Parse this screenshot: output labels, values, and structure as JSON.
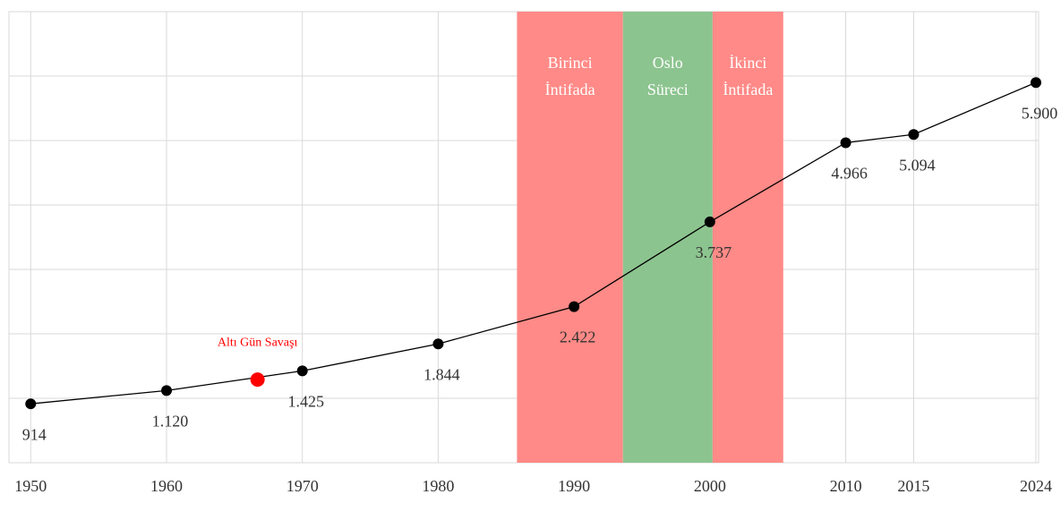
{
  "chart_data": {
    "type": "line",
    "x": [
      1950,
      1960,
      1970,
      1980,
      1990,
      2000,
      2010,
      2015,
      2024
    ],
    "values": [
      914,
      1120,
      1425,
      1844,
      2422,
      3737,
      4966,
      5094,
      5900
    ],
    "value_labels": [
      "914",
      "1.120",
      "1.425",
      "1.844",
      "2.422",
      "3.737",
      "4.966",
      "5.094",
      "5.900"
    ],
    "color": "#000000",
    "xlim": [
      1948.4,
      2024.2
    ],
    "ylim": [
      0,
      7000
    ],
    "xticks": [
      1950,
      1960,
      1970,
      1980,
      1990,
      2000,
      2010,
      2015,
      2024
    ],
    "yticks": [
      0,
      1000,
      2000,
      3000,
      4000,
      5000,
      6000,
      7000
    ],
    "grid": true,
    "bands": [
      {
        "lines": [
          "Birinci",
          "İntifada"
        ],
        "start": 1985.8,
        "end": 1993.6,
        "color": "#ff8a87"
      },
      {
        "lines": [
          "Oslo",
          "Süreci"
        ],
        "start": 1993.6,
        "end": 2000.2,
        "color": "#8cc48f"
      },
      {
        "lines": [
          "İkinci",
          "İntifada"
        ],
        "start": 2000.2,
        "end": 2005.4,
        "color": "#ff8a87"
      }
    ],
    "annotation": {
      "text": "Altı Gün Savaşı",
      "x": 1966.7,
      "value": 1290,
      "color": "#ff0000"
    }
  }
}
